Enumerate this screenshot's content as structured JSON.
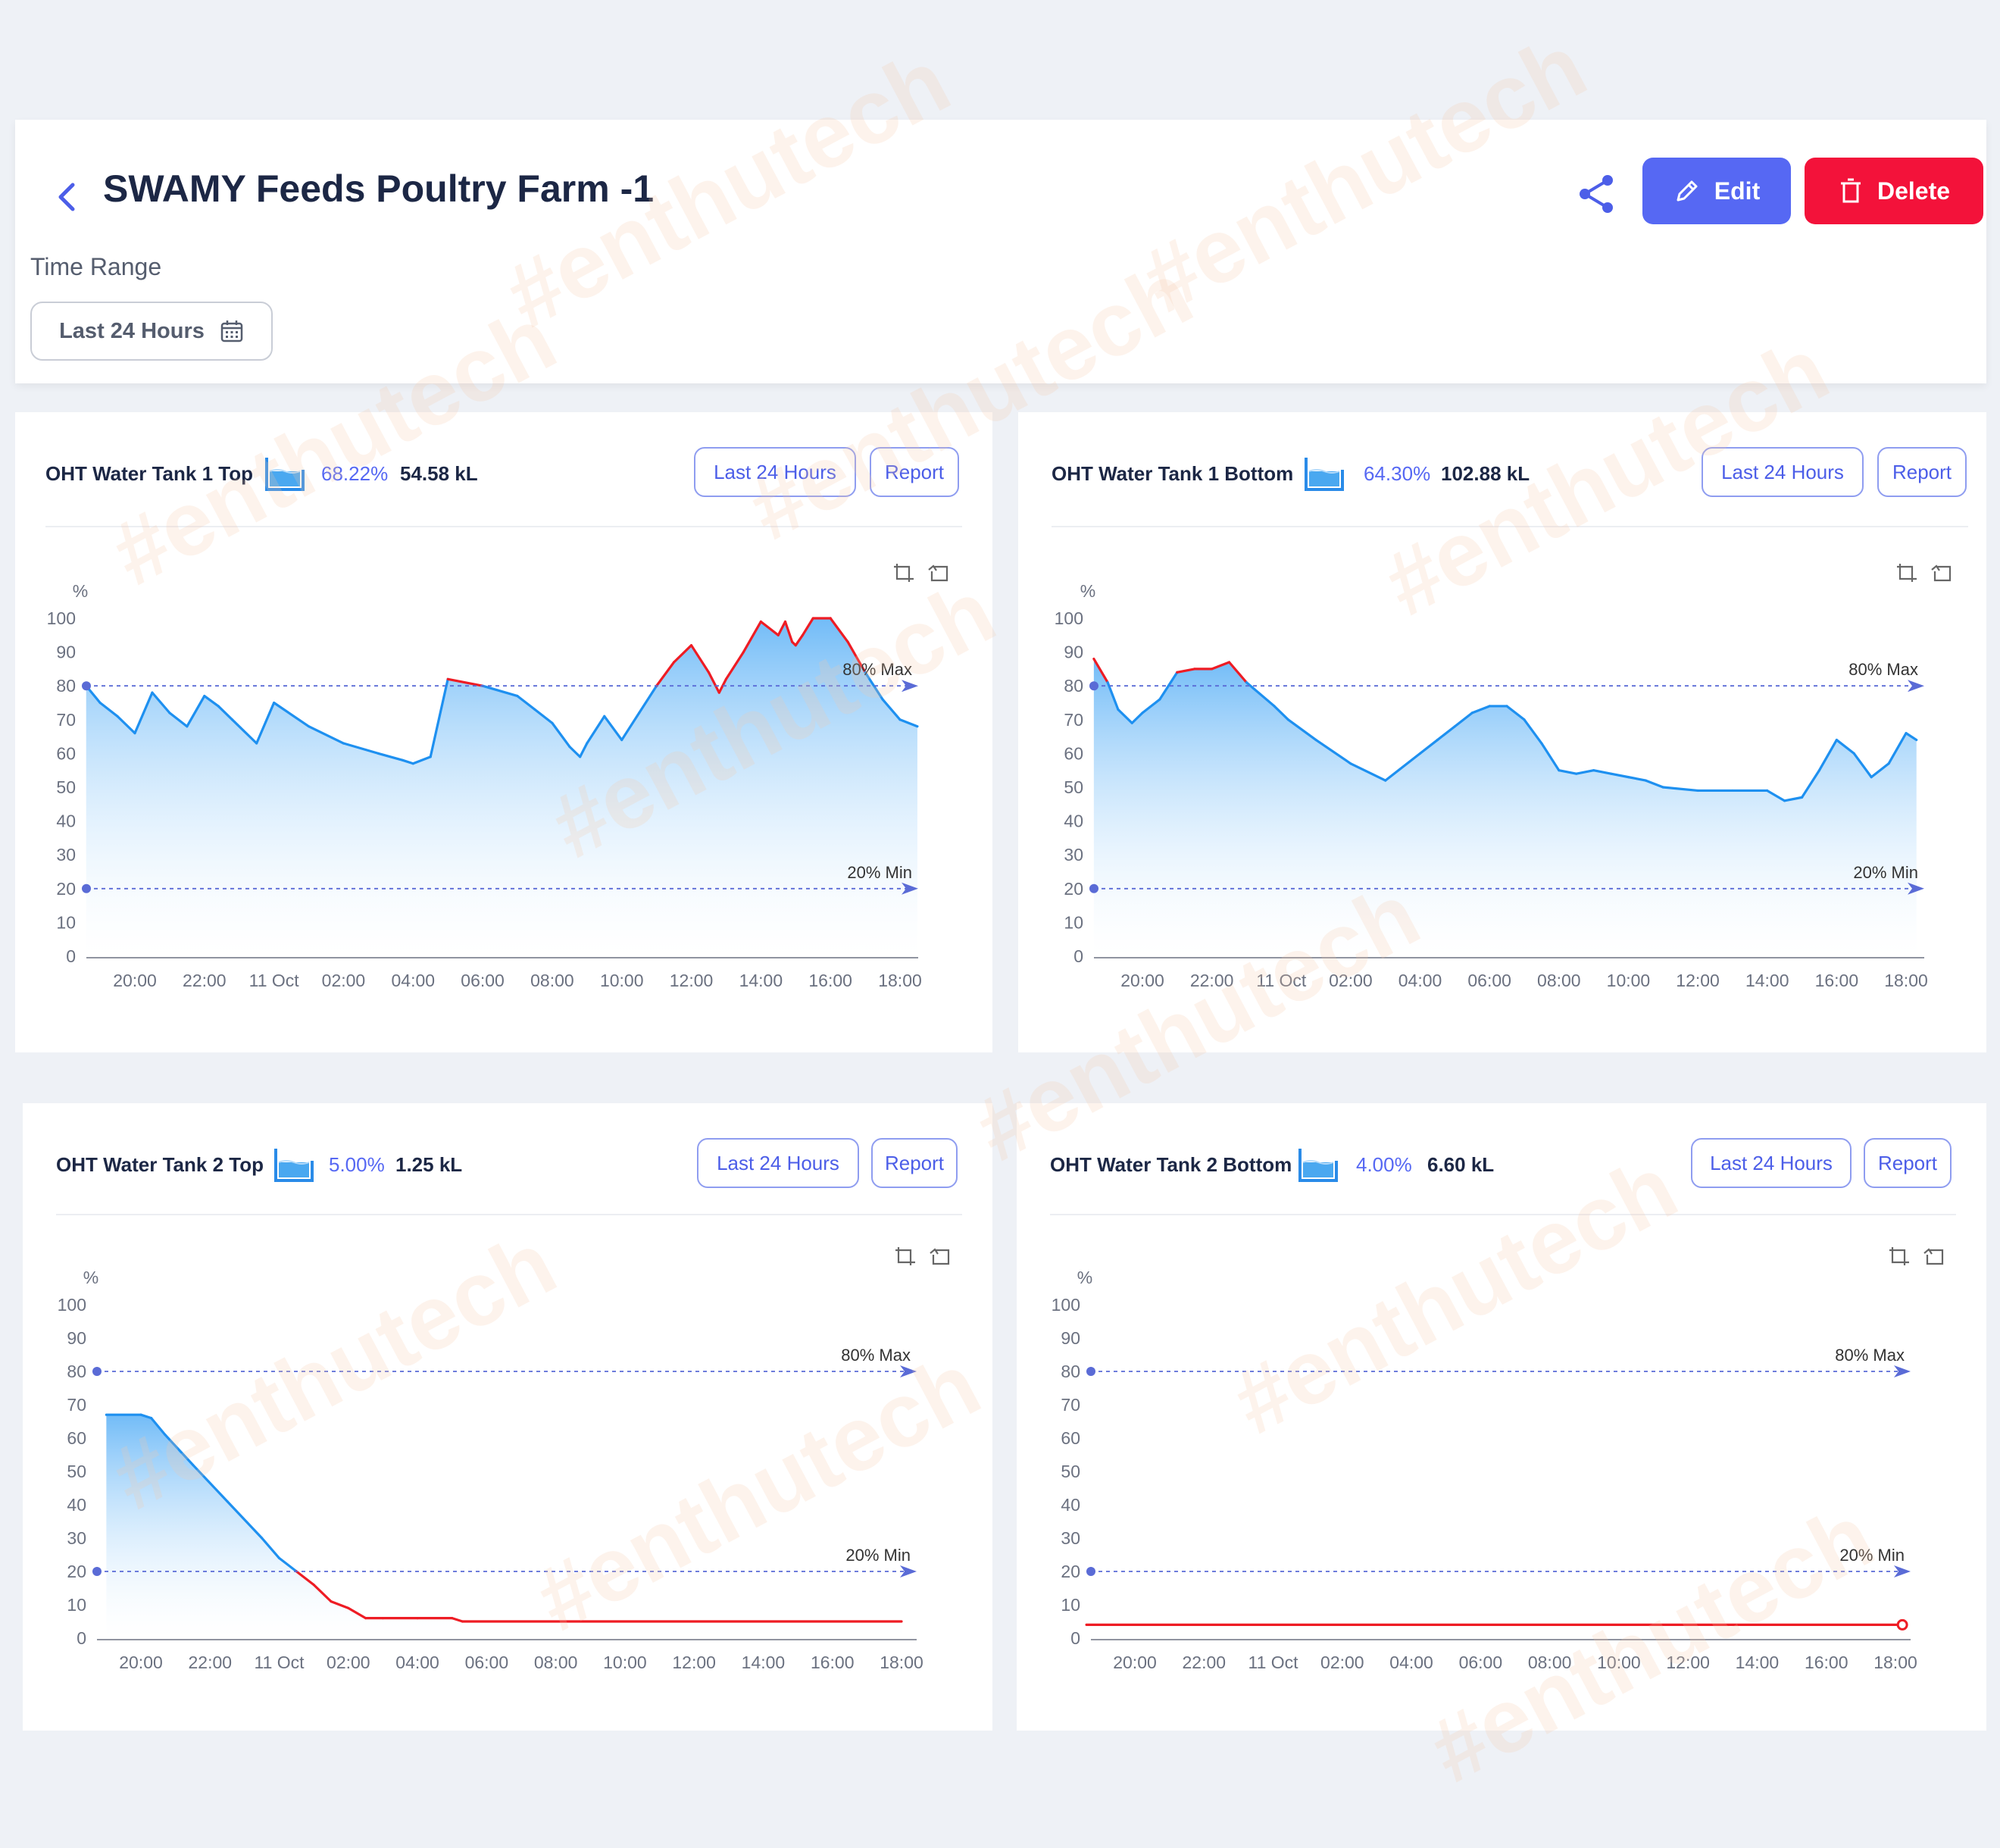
{
  "header": {
    "title": "SWAMY Feeds Poultry Farm -1",
    "edit_label": "Edit",
    "delete_label": "Delete",
    "time_range_label": "Time Range",
    "time_range_value": "Last 24 Hours"
  },
  "watermark_text": "#enthutech",
  "colors": {
    "accent": "#5668f3",
    "danger": "#f3123a",
    "line": "#1e90f0",
    "over_limit": "#ee1c24",
    "ref_line": "#5a6bd6"
  },
  "panels": [
    {
      "title": "OHT Water Tank 1 Top",
      "percent": "68.22%",
      "volume": "54.58 kL",
      "range_button": "Last 24 Hours",
      "report_button": "Report"
    },
    {
      "title": "OHT Water Tank 1 Bottom",
      "percent": "64.30%",
      "volume": "102.88 kL",
      "range_button": "Last 24 Hours",
      "report_button": "Report"
    },
    {
      "title": "OHT Water Tank 2 Top",
      "percent": "5.00%",
      "volume": "1.25 kL",
      "range_button": "Last 24 Hours",
      "report_button": "Report"
    },
    {
      "title": "OHT Water Tank 2 Bottom",
      "percent": "4.00%",
      "volume": "6.60 kL",
      "range_button": "Last 24 Hours",
      "report_button": "Report"
    }
  ],
  "chart_data": [
    {
      "type": "area",
      "title": "OHT Water Tank 1 Top",
      "ylabel": "%",
      "ylim": [
        0,
        100
      ],
      "y_ticks": [
        "0",
        "10",
        "20",
        "30",
        "40",
        "50",
        "60",
        "70",
        "80",
        "90",
        "100"
      ],
      "x_ticks": [
        "20:00",
        "22:00",
        "11 Oct",
        "02:00",
        "04:00",
        "06:00",
        "08:00",
        "10:00",
        "12:00",
        "14:00",
        "16:00",
        "18:00"
      ],
      "x_hours": [
        18.6,
        19.0,
        19.5,
        20.0,
        20.5,
        21.0,
        21.5,
        22.0,
        22.4,
        22.8,
        23.5,
        24.0,
        25.0,
        26.0,
        27.0,
        27.7,
        28.0,
        28.5,
        29.0,
        30.0,
        31.0,
        31.5,
        32.0,
        32.5,
        32.8,
        33.0,
        33.5,
        34.0,
        34.5,
        35.0,
        35.5,
        36.0,
        36.5,
        36.8,
        37.0,
        37.5,
        38.0,
        38.5,
        38.7,
        38.9,
        39.0,
        39.2,
        39.5,
        40.0,
        40.5,
        41.0,
        41.5,
        42.0,
        42.5
      ],
      "y": [
        80,
        75,
        71,
        66,
        78,
        72,
        68,
        77,
        74,
        70,
        63,
        75,
        68,
        63,
        60,
        58,
        57,
        59,
        82,
        80,
        77,
        73,
        69,
        62,
        59,
        63,
        71,
        64,
        72,
        80,
        87,
        92,
        84,
        78,
        82,
        90,
        99,
        95,
        99,
        93,
        92,
        95,
        100,
        100,
        93,
        84,
        76,
        70,
        68
      ],
      "series": [
        {
          "values": [
            80,
            75,
            71,
            66,
            78,
            72,
            68,
            77,
            74,
            70,
            63,
            75,
            68,
            63,
            60,
            58,
            57,
            59,
            82,
            80,
            77,
            73,
            69,
            62,
            59,
            63,
            71,
            64,
            72,
            80,
            87,
            92,
            84,
            78,
            82,
            90,
            99,
            95,
            99,
            93,
            92,
            95,
            100,
            100,
            93,
            84,
            76,
            70,
            68
          ]
        }
      ],
      "reference_lines": [
        {
          "label": "80% Max",
          "value": 80
        },
        {
          "label": "20% Min",
          "value": 20
        }
      ],
      "legend": "none",
      "grid": false
    },
    {
      "type": "area",
      "title": "OHT Water Tank 1 Bottom",
      "ylabel": "%",
      "ylim": [
        0,
        100
      ],
      "y_ticks": [
        "0",
        "10",
        "20",
        "30",
        "40",
        "50",
        "60",
        "70",
        "80",
        "90",
        "100"
      ],
      "x_ticks": [
        "20:00",
        "22:00",
        "11 Oct",
        "02:00",
        "04:00",
        "06:00",
        "08:00",
        "10:00",
        "12:00",
        "14:00",
        "16:00",
        "18:00"
      ],
      "x_hours": [
        18.6,
        19.0,
        19.3,
        19.7,
        20.0,
        20.5,
        21.0,
        21.5,
        22.0,
        22.5,
        23.0,
        23.8,
        24.2,
        25.0,
        26.0,
        27.0,
        28.0,
        28.5,
        29.0,
        29.5,
        30.0,
        30.5,
        31.0,
        31.5,
        32.0,
        32.5,
        33.0,
        33.5,
        34.0,
        34.5,
        35.0,
        36.0,
        37.0,
        38.0,
        38.5,
        39.0,
        39.5,
        40.0,
        40.5,
        41.0,
        41.5,
        42.0,
        42.3
      ],
      "y": [
        88,
        81,
        73,
        69,
        72,
        76,
        84,
        85,
        85,
        87,
        81,
        74,
        70,
        64,
        57,
        52,
        60,
        64,
        68,
        72,
        74,
        74,
        70,
        63,
        55,
        54,
        55,
        54,
        53,
        52,
        50,
        49,
        49,
        49,
        46,
        47,
        55,
        64,
        60,
        53,
        57,
        66,
        64
      ],
      "series": [
        {
          "values": [
            88,
            81,
            73,
            69,
            72,
            76,
            84,
            85,
            85,
            87,
            81,
            74,
            70,
            64,
            57,
            52,
            60,
            64,
            68,
            72,
            74,
            74,
            70,
            63,
            55,
            54,
            55,
            54,
            53,
            52,
            50,
            49,
            49,
            49,
            46,
            47,
            55,
            64,
            60,
            53,
            57,
            66,
            64
          ]
        }
      ],
      "reference_lines": [
        {
          "label": "80% Max",
          "value": 80
        },
        {
          "label": "20% Min",
          "value": 20
        }
      ],
      "legend": "none",
      "grid": false
    },
    {
      "type": "area",
      "title": "OHT Water Tank 2 Top",
      "ylabel": "%",
      "ylim": [
        0,
        100
      ],
      "y_ticks": [
        "0",
        "10",
        "20",
        "30",
        "40",
        "50",
        "60",
        "70",
        "80",
        "90",
        "100"
      ],
      "x_ticks": [
        "20:00",
        "22:00",
        "11 Oct",
        "02:00",
        "04:00",
        "06:00",
        "08:00",
        "10:00",
        "12:00",
        "14:00",
        "16:00",
        "18:00"
      ],
      "x_hours": [
        19.0,
        20.0,
        20.3,
        20.7,
        21.5,
        22.5,
        23.5,
        24.0,
        24.5,
        25.0,
        25.5,
        26.0,
        26.5,
        27.0,
        28.0,
        29.0,
        29.3,
        42.0
      ],
      "y": [
        67,
        67,
        66,
        61,
        52,
        41,
        30,
        24,
        20,
        16,
        11,
        9,
        6,
        6,
        6,
        6,
        5,
        5
      ],
      "series": [
        {
          "values": [
            67,
            67,
            66,
            61,
            52,
            41,
            30,
            24,
            20,
            16,
            11,
            9,
            6,
            6,
            6,
            6,
            5,
            5
          ]
        }
      ],
      "reference_lines": [
        {
          "label": "80% Max",
          "value": 80
        },
        {
          "label": "20% Min",
          "value": 20
        }
      ],
      "legend": "none",
      "grid": false
    },
    {
      "type": "line",
      "title": "OHT Water Tank 2 Bottom",
      "ylabel": "%",
      "ylim": [
        0,
        100
      ],
      "y_ticks": [
        "0",
        "10",
        "20",
        "30",
        "40",
        "50",
        "60",
        "70",
        "80",
        "90",
        "100"
      ],
      "x_ticks": [
        "20:00",
        "22:00",
        "11 Oct",
        "02:00",
        "04:00",
        "06:00",
        "08:00",
        "10:00",
        "12:00",
        "14:00",
        "16:00",
        "18:00"
      ],
      "x_hours": [
        18.6,
        42.2
      ],
      "y": [
        4,
        4
      ],
      "series": [
        {
          "values": [
            4,
            4
          ]
        }
      ],
      "reference_lines": [
        {
          "label": "80% Max",
          "value": 80
        },
        {
          "label": "20% Min",
          "value": 20
        }
      ],
      "legend": "none",
      "grid": false
    }
  ]
}
